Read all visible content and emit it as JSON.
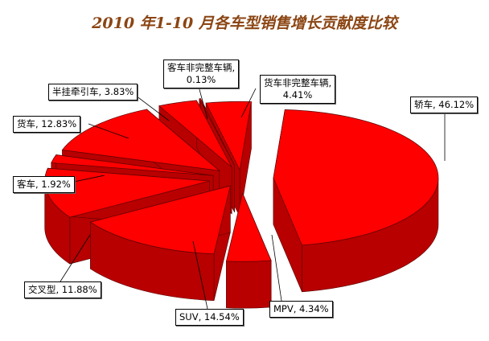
{
  "chart_data": {
    "type": "pie",
    "title": "2010 年1-10 月各车型销售增长贡献度比较",
    "slices": [
      {
        "name": "轿车",
        "value": 46.12,
        "label": "轿车, 46.12%"
      },
      {
        "name": "MPV",
        "value": 4.34,
        "label": "MPV, 4.34%"
      },
      {
        "name": "SUV",
        "value": 14.54,
        "label": "SUV, 14.54%"
      },
      {
        "name": "交叉型",
        "value": 11.88,
        "label": "交叉型, 11.88%"
      },
      {
        "name": "客车",
        "value": 1.92,
        "label": "客车, 1.92%"
      },
      {
        "name": "货车",
        "value": 12.83,
        "label": "货车, 12.83%"
      },
      {
        "name": "半挂牵引车",
        "value": 3.83,
        "label": "半挂牵引车, 3.83%"
      },
      {
        "name": "客车非完整车辆",
        "value": 0.13,
        "label_lines": [
          "客车非完整车辆,",
          "0.13%"
        ]
      },
      {
        "name": "货车非完整车辆",
        "value": 4.41,
        "label_lines": [
          "货车非完整车辆,",
          "4.41%"
        ]
      }
    ],
    "colors": {
      "top": "#ff0000",
      "side": "#b80000",
      "edge": "#5a0000"
    }
  }
}
